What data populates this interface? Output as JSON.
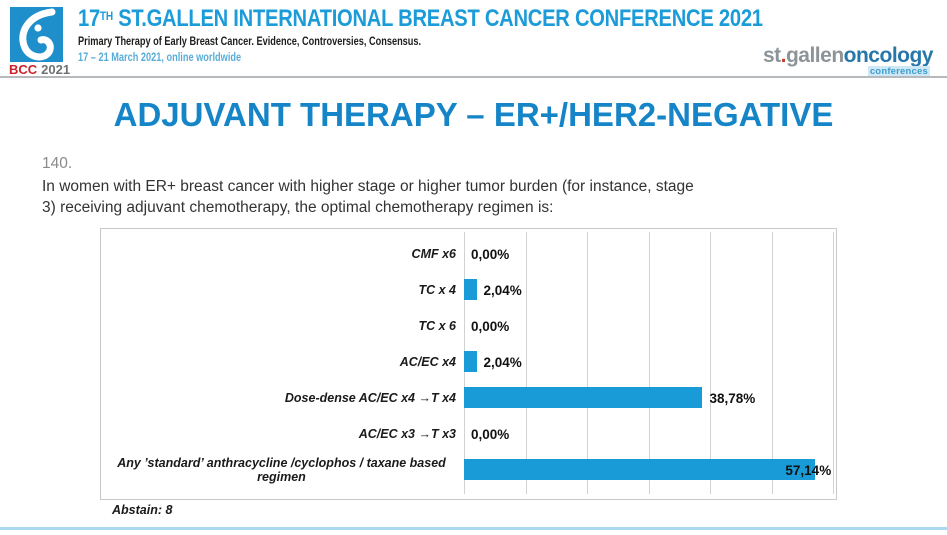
{
  "header": {
    "logo_bcc": "BCC",
    "logo_year": "2021",
    "conf_prefix": "17",
    "conf_sup": "TH",
    "conf_rest": " ST.GALLEN INTERNATIONAL BREAST CANCER CONFERENCE 2021",
    "subtitle": "Primary Therapy of Early Breast Cancer. Evidence, Controversies, Consensus.",
    "dates": "17 – 21 March 2021, online worldwide",
    "brand_st": "st",
    "brand_dot": ".",
    "brand_gallen": "gallen",
    "brand_oncology": "oncology",
    "brand_conferences": "conferences"
  },
  "slide": {
    "title": "ADJUVANT THERAPY – ER+/HER2-NEGATIVE",
    "question_number": "140.",
    "question_line1": "In women with ER+ breast cancer with higher stage or higher  tumor burden (for instance, stage",
    "question_line2": "3) receiving adjuvant chemotherapy, the optimal chemotherapy regimen is:",
    "abstain": "Abstain: 8"
  },
  "chart_data": {
    "type": "bar",
    "orientation": "horizontal",
    "title": "",
    "xlabel": "",
    "ylabel": "",
    "categories": [
      "CMF x6",
      "TC x 4",
      "TC x 6",
      "AC/EC  x4",
      "Dose-dense AC/EC x4 →T x4",
      "AC/EC x3 →T x3",
      "Any ’standard’ anthracycline /cyclophos / taxane based regimen"
    ],
    "values": [
      0.0,
      2.04,
      0.0,
      2.04,
      38.78,
      0.0,
      57.14
    ],
    "value_labels": [
      "0,00%",
      "2,04%",
      "0,00%",
      "2,04%",
      "38,78%",
      "0,00%",
      "57,14%"
    ],
    "xlim": [
      0,
      60
    ],
    "gridline_interval": 10,
    "grid": true,
    "legend": false,
    "bar_color": "#189bd7"
  },
  "colors": {
    "header_blue": "#1b9cd8",
    "dates_blue": "#58add8",
    "title_blue": "#1585c8",
    "bar_blue": "#189bd7",
    "bcc_red": "#cc2229",
    "stripe_blue": "#aad8f0"
  }
}
